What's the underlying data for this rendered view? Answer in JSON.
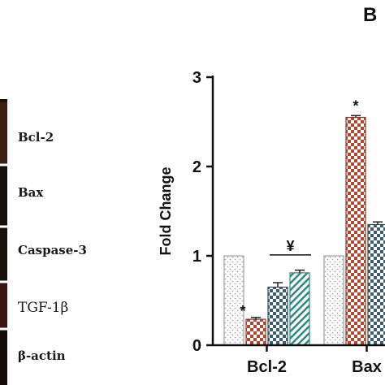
{
  "panel_letter": "B",
  "blot": {
    "bands": [
      "Bcl-2",
      "Bax",
      "Caspase-3",
      "TGF-1β",
      "β-actin"
    ]
  },
  "chart_data": {
    "type": "bar",
    "ylabel": "Fold Change",
    "ylim": [
      0,
      3
    ],
    "yticks": [
      0,
      1,
      2,
      3
    ],
    "categories": [
      "Bcl-2",
      "Bax"
    ],
    "series": [
      {
        "values": [
          1.0,
          1.0
        ],
        "errors": [
          0,
          0
        ],
        "pattern": "dots",
        "color": "#b8b8b8"
      },
      {
        "values": [
          0.29,
          2.55
        ],
        "errors": [
          0.02,
          0.02
        ],
        "pattern": "checker",
        "color": "#b5452b"
      },
      {
        "values": [
          0.65,
          1.35
        ],
        "errors": [
          0.05,
          0.03
        ],
        "pattern": "checker",
        "color": "#3d5d74"
      },
      {
        "values": [
          0.81,
          null
        ],
        "errors": [
          0.03,
          null
        ],
        "pattern": "hatch",
        "color": "#2d8a83"
      }
    ],
    "annotations": [
      {
        "text": "*",
        "category": 0,
        "series": 1
      },
      {
        "text": "*",
        "category": 1,
        "series": 1
      },
      {
        "text": "¥",
        "category": 0,
        "series_span": [
          2,
          3
        ]
      },
      {
        "text": "¥",
        "category": 1,
        "series_span": [
          2,
          3
        ]
      }
    ]
  }
}
